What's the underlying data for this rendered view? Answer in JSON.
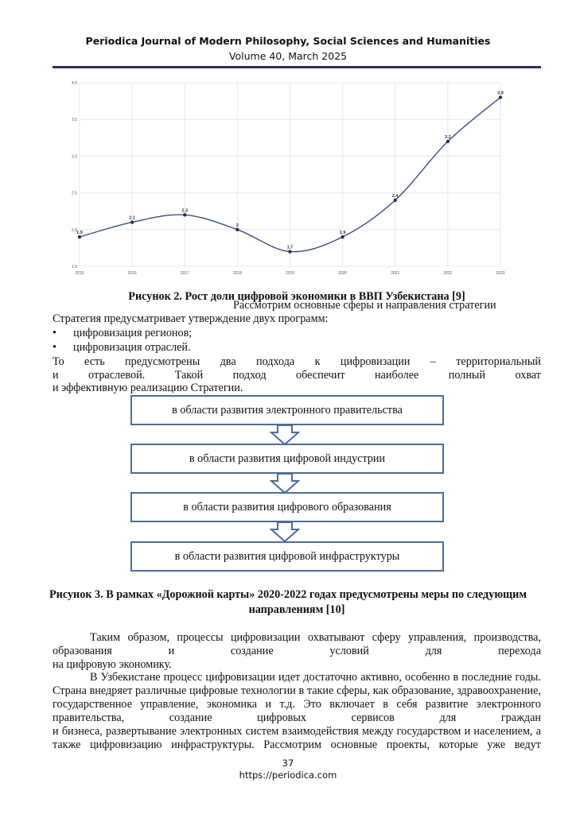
{
  "header": {
    "journal": "Periodica Journal of Modern Philosophy, Social Sciences and Humanities",
    "volume": "Volume 40, March 2025"
  },
  "chart_data": {
    "type": "line",
    "title": "",
    "xlabel": "",
    "ylabel": "",
    "x": [
      "2015",
      "2016",
      "2017",
      "2018",
      "2019",
      "2020",
      "2021",
      "2022",
      "2023"
    ],
    "values": [
      1.9,
      2.1,
      2.2,
      2,
      1.7,
      1.9,
      2.4,
      3.2,
      3.8
    ],
    "data_labels": [
      "1.9",
      "2.1",
      "2.2",
      "2",
      "1.7",
      "1.9",
      "2.4",
      "3.2",
      "3.8"
    ],
    "yticks": [
      "1.5",
      "2.0",
      "2.5",
      "3.0",
      "3.5",
      "4.0"
    ],
    "ylim": [
      1.5,
      4.0
    ],
    "grid": true,
    "smooth": true,
    "line_color": "#3b4f7a",
    "marker_color": "#1f3350"
  },
  "figure2_caption": "Рисунок 2. Рост доли цифровой экономики в ВВП Узбекистана [9]",
  "text1": {
    "intro": "Рассмотрим основные сферы и направления стратегии",
    "strategy": "Стратегия предусматривает утверждение двух программ:",
    "bullets": [
      "цифровизация регионов;",
      "цифровизация отраслей."
    ],
    "bullet_glyph": "•",
    "p_line1": "То есть предусмотрены два подхода к цифровизации – территориальный",
    "p_line2": "и отраслевой. Такой подход обеспечит наиболее полный охват",
    "p_line3": "и эффективную реализацию Стратегии."
  },
  "flow": {
    "boxes": [
      "в области развития электронного правительства",
      "в области развития цифровой индустрии",
      "в области развития цифрового образования",
      "в области развития цифровой инфраструктуры"
    ],
    "border_color": "#4a6e9a"
  },
  "figure3_caption": {
    "line1": "Рисунок 3. В рамках «Дорожной карты» 2020-2022 годах предусмотрены меры по следующим",
    "line2": "направлениям [10]"
  },
  "text2": {
    "lines": [
      "Таким образом, процессы цифровизации охватывают сферу управления, производства,",
      "образования и создание условий для перехода",
      "на цифровую экономику.",
      "В Узбекистане процесс цифровизации идет достаточно активно, особенно в последние годы.",
      "Страна внедряет различные цифровые технологии в такие сферы, как образование, здравоохранение,",
      "государственное управление, экономика и т.д. Это включает в себя развитие электронного",
      "правительства, создание цифровых сервисов для граждан",
      "и бизнеса, развертывание электронных систем взаимодействия между государством и населением, а",
      "также цифровизацию инфраструктуры. Рассмотрим основные проекты, которые уже ведут"
    ]
  },
  "footer": {
    "page_number": "37",
    "url": "https://periodica.com"
  }
}
